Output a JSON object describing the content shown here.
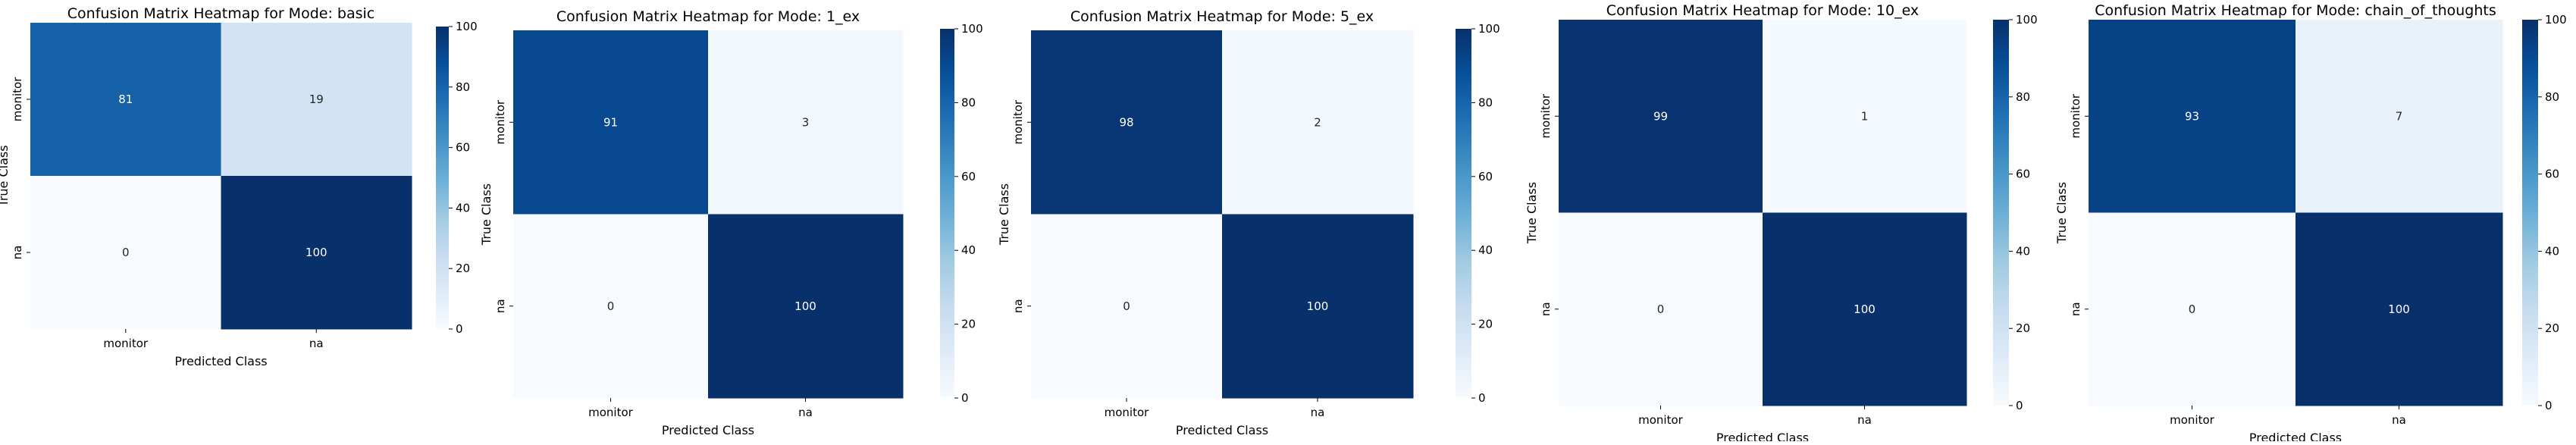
{
  "colormap": {
    "name": "Blues",
    "stops": [
      "#f7fbff",
      "#deebf7",
      "#c6dbef",
      "#9ecae1",
      "#6baed6",
      "#4292c6",
      "#2171b5",
      "#08519c",
      "#08306b"
    ]
  },
  "chart_data": [
    {
      "type": "heatmap",
      "title": "Confusion Matrix Heatmap for Mode: basic",
      "xlabel": "Predicted Class",
      "ylabel": "True Class",
      "x_categories": [
        "monitor",
        "na"
      ],
      "y_categories": [
        "monitor",
        "na"
      ],
      "values": [
        [
          81,
          19
        ],
        [
          0,
          100
        ]
      ],
      "colorbar": {
        "range": [
          0,
          100
        ],
        "ticks": [
          0,
          20,
          40,
          60,
          80,
          100
        ]
      }
    },
    {
      "type": "heatmap",
      "title": "Confusion Matrix Heatmap for Mode: 1_ex",
      "xlabel": "Predicted Class",
      "ylabel": "True Class",
      "x_categories": [
        "monitor",
        "na"
      ],
      "y_categories": [
        "monitor",
        "na"
      ],
      "values": [
        [
          91,
          3
        ],
        [
          0,
          100
        ]
      ],
      "colorbar": {
        "range": [
          0,
          100
        ],
        "ticks": [
          0,
          20,
          40,
          60,
          80,
          100
        ]
      }
    },
    {
      "type": "heatmap",
      "title": "Confusion Matrix Heatmap for Mode: 5_ex",
      "xlabel": "Predicted Class",
      "ylabel": "True Class",
      "x_categories": [
        "monitor",
        "na"
      ],
      "y_categories": [
        "monitor",
        "na"
      ],
      "values": [
        [
          98,
          2
        ],
        [
          0,
          100
        ]
      ],
      "colorbar": {
        "range": [
          0,
          100
        ],
        "ticks": [
          0,
          20,
          40,
          60,
          80,
          100
        ]
      }
    },
    {
      "type": "heatmap",
      "title": "Confusion Matrix Heatmap for Mode: 10_ex",
      "xlabel": "Predicted Class",
      "ylabel": "True Class",
      "x_categories": [
        "monitor",
        "na"
      ],
      "y_categories": [
        "monitor",
        "na"
      ],
      "values": [
        [
          99,
          1
        ],
        [
          0,
          100
        ]
      ],
      "colorbar": {
        "range": [
          0,
          100
        ],
        "ticks": [
          0,
          20,
          40,
          60,
          80,
          100
        ]
      }
    },
    {
      "type": "heatmap",
      "title": "Confusion Matrix Heatmap for Mode: chain_of_thoughts",
      "xlabel": "Predicted Class",
      "ylabel": "True Class",
      "x_categories": [
        "monitor",
        "na"
      ],
      "y_categories": [
        "monitor",
        "na"
      ],
      "values": [
        [
          93,
          7
        ],
        [
          0,
          100
        ]
      ],
      "colorbar": {
        "range": [
          0,
          100
        ],
        "ticks": [
          0,
          20,
          40,
          60,
          80,
          100
        ]
      }
    }
  ]
}
